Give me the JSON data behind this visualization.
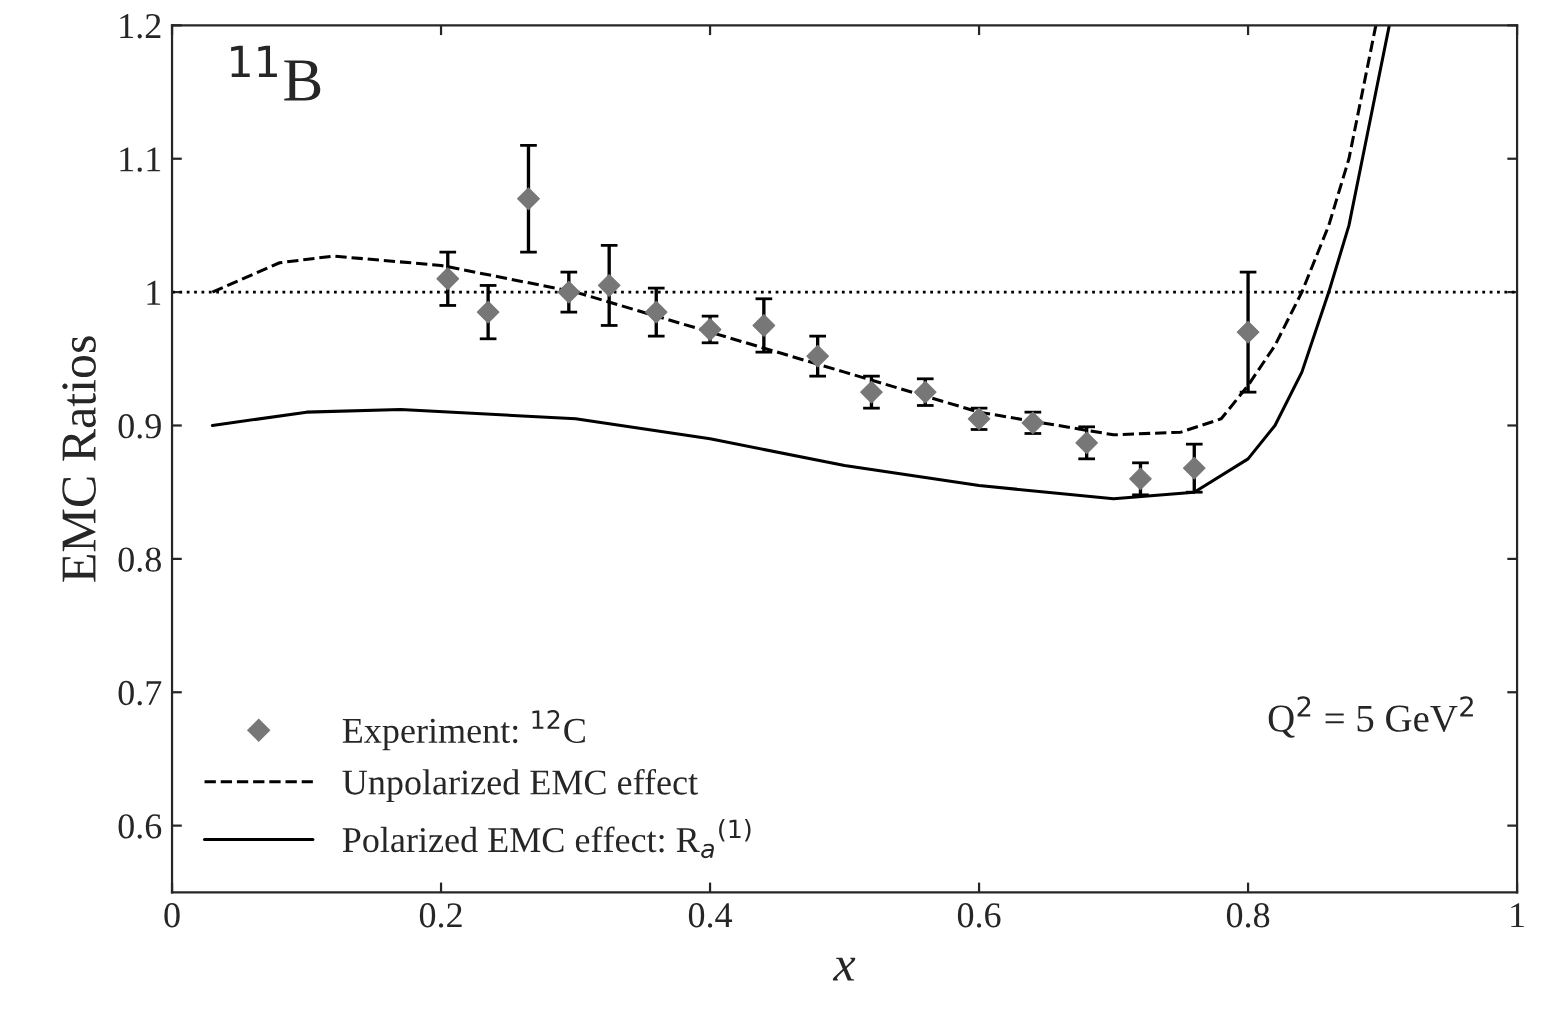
{
  "chart_data": {
    "type": "scatter",
    "xlabel": "x",
    "ylabel": "EMC Ratios",
    "xlim": [
      0,
      1
    ],
    "ylim": [
      0.55,
      1.2
    ],
    "xticks": [
      0,
      0.2,
      0.4,
      0.6,
      0.8,
      1
    ],
    "yticks": [
      0.6,
      0.7,
      0.8,
      0.9,
      1,
      1.1,
      1.2
    ],
    "grid": false,
    "legend": "bottom left",
    "ref_lines": [
      {
        "axis": "y",
        "value": 1,
        "color": "#000000",
        "line_style": "dotted"
      }
    ],
    "annotations": [
      {
        "text": "$^{11}$B"
      },
      {
        "text": "Q$^{2}$ = 5 GeV$^{2}$"
      }
    ],
    "series": [
      {
        "name": "Experiment: $^{12}$C",
        "color": "#777777",
        "marker": "diamond",
        "x": [
          0.205,
          0.235,
          0.265,
          0.295,
          0.325,
          0.36,
          0.4,
          0.44,
          0.48,
          0.52,
          0.56,
          0.6,
          0.64,
          0.68,
          0.72,
          0.76,
          0.8
        ],
        "values": [
          1.01,
          0.985,
          1.07,
          1.0,
          1.005,
          0.985,
          0.972,
          0.975,
          0.952,
          0.925,
          0.925,
          0.905,
          0.902,
          0.887,
          0.86,
          0.868,
          0.97
        ],
        "errors": [
          0.02,
          0.02,
          0.04,
          0.015,
          0.03,
          0.018,
          0.01,
          0.02,
          0.015,
          0.012,
          0.01,
          0.008,
          0.008,
          0.012,
          0.012,
          0.018,
          0.045
        ]
      },
      {
        "name": "Unpolarized EMC effect",
        "type": "line",
        "color": "#000000",
        "line_style": "dashed",
        "marker": "none",
        "x": [
          0.03,
          0.08,
          0.12,
          0.2,
          0.3,
          0.4,
          0.5,
          0.6,
          0.7,
          0.75,
          0.78,
          0.8,
          0.82,
          0.84,
          0.86,
          0.875,
          0.885,
          0.895
        ],
        "values": [
          1.0,
          1.022,
          1.027,
          1.02,
          1.0,
          0.97,
          0.94,
          0.91,
          0.893,
          0.895,
          0.905,
          0.93,
          0.96,
          1.0,
          1.05,
          1.1,
          1.15,
          1.2
        ]
      },
      {
        "name": "Polarized EMC effect: R$_{a}$$^{(1)}$",
        "type": "line",
        "color": "#000000",
        "line_style": "solid",
        "marker": "none",
        "x": [
          0.03,
          0.1,
          0.17,
          0.3,
          0.4,
          0.5,
          0.6,
          0.7,
          0.76,
          0.8,
          0.82,
          0.84,
          0.86,
          0.875,
          0.885,
          0.895,
          0.905
        ],
        "values": [
          0.9,
          0.91,
          0.912,
          0.905,
          0.89,
          0.87,
          0.855,
          0.845,
          0.85,
          0.875,
          0.9,
          0.94,
          1.0,
          1.05,
          1.1,
          1.15,
          1.2
        ]
      }
    ]
  }
}
